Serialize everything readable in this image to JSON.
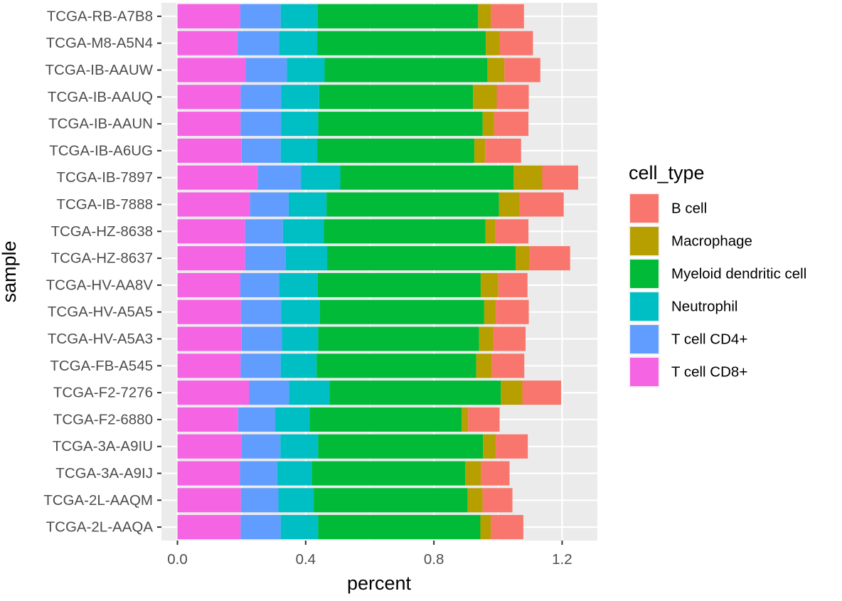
{
  "chart_data": {
    "type": "bar",
    "orientation": "horizontal",
    "stacked": true,
    "xlabel": "percent",
    "ylabel": "sample",
    "xlim": [
      -0.05,
      1.31
    ],
    "xticks": [
      0.0,
      0.4,
      0.8,
      1.2
    ],
    "xtick_labels": [
      "0.0",
      "0.4",
      "0.8",
      "1.2"
    ],
    "grid": true,
    "legend": {
      "title": "cell_type",
      "position": "right"
    },
    "categories": [
      "TCGA-RB-A7B8",
      "TCGA-M8-A5N4",
      "TCGA-IB-AAUW",
      "TCGA-IB-AAUQ",
      "TCGA-IB-AAUN",
      "TCGA-IB-A6UG",
      "TCGA-IB-7897",
      "TCGA-IB-7888",
      "TCGA-HZ-8638",
      "TCGA-HZ-8637",
      "TCGA-HV-AA8V",
      "TCGA-HV-A5A5",
      "TCGA-HV-A5A3",
      "TCGA-FB-A545",
      "TCGA-F2-7276",
      "TCGA-F2-6880",
      "TCGA-3A-A9IU",
      "TCGA-3A-A9IJ",
      "TCGA-2L-AAQM",
      "TCGA-2L-AAQA"
    ],
    "stack_order": [
      "T cell CD8+",
      "T cell CD4+",
      "Neutrophil",
      "Myeloid dendritic cell",
      "Macrophage",
      "B cell"
    ],
    "series": [
      {
        "name": "B cell",
        "color": "#F8766D",
        "values": [
          0.103,
          0.103,
          0.112,
          0.1,
          0.107,
          0.112,
          0.112,
          0.139,
          0.103,
          0.127,
          0.091,
          0.103,
          0.101,
          0.101,
          0.121,
          0.098,
          0.1,
          0.089,
          0.093,
          0.101
        ]
      },
      {
        "name": "Macrophage",
        "color": "#B79F00",
        "values": [
          0.04,
          0.044,
          0.053,
          0.074,
          0.036,
          0.034,
          0.089,
          0.063,
          0.031,
          0.043,
          0.055,
          0.036,
          0.044,
          0.049,
          0.067,
          0.02,
          0.04,
          0.049,
          0.047,
          0.033
        ]
      },
      {
        "name": "Myeloid dendritic cell",
        "color": "#00BA38",
        "values": [
          0.5,
          0.526,
          0.508,
          0.48,
          0.513,
          0.49,
          0.541,
          0.538,
          0.504,
          0.588,
          0.508,
          0.513,
          0.502,
          0.498,
          0.535,
          0.475,
          0.514,
          0.479,
          0.48,
          0.506
        ]
      },
      {
        "name": "Neutrophil",
        "color": "#00BFC4",
        "values": [
          0.116,
          0.119,
          0.118,
          0.119,
          0.116,
          0.114,
          0.123,
          0.118,
          0.128,
          0.129,
          0.121,
          0.121,
          0.113,
          0.112,
          0.126,
          0.107,
          0.118,
          0.108,
          0.11,
          0.117
        ]
      },
      {
        "name": "T cell CD4+",
        "color": "#619CFF",
        "values": [
          0.126,
          0.13,
          0.128,
          0.126,
          0.126,
          0.122,
          0.135,
          0.121,
          0.118,
          0.127,
          0.121,
          0.125,
          0.126,
          0.125,
          0.124,
          0.116,
          0.122,
          0.116,
          0.117,
          0.125
        ]
      },
      {
        "name": "T cell CD8+",
        "color": "#F564E3",
        "values": [
          0.196,
          0.187,
          0.213,
          0.197,
          0.197,
          0.2,
          0.25,
          0.226,
          0.211,
          0.211,
          0.196,
          0.198,
          0.2,
          0.197,
          0.224,
          0.189,
          0.199,
          0.195,
          0.198,
          0.197
        ]
      }
    ]
  }
}
